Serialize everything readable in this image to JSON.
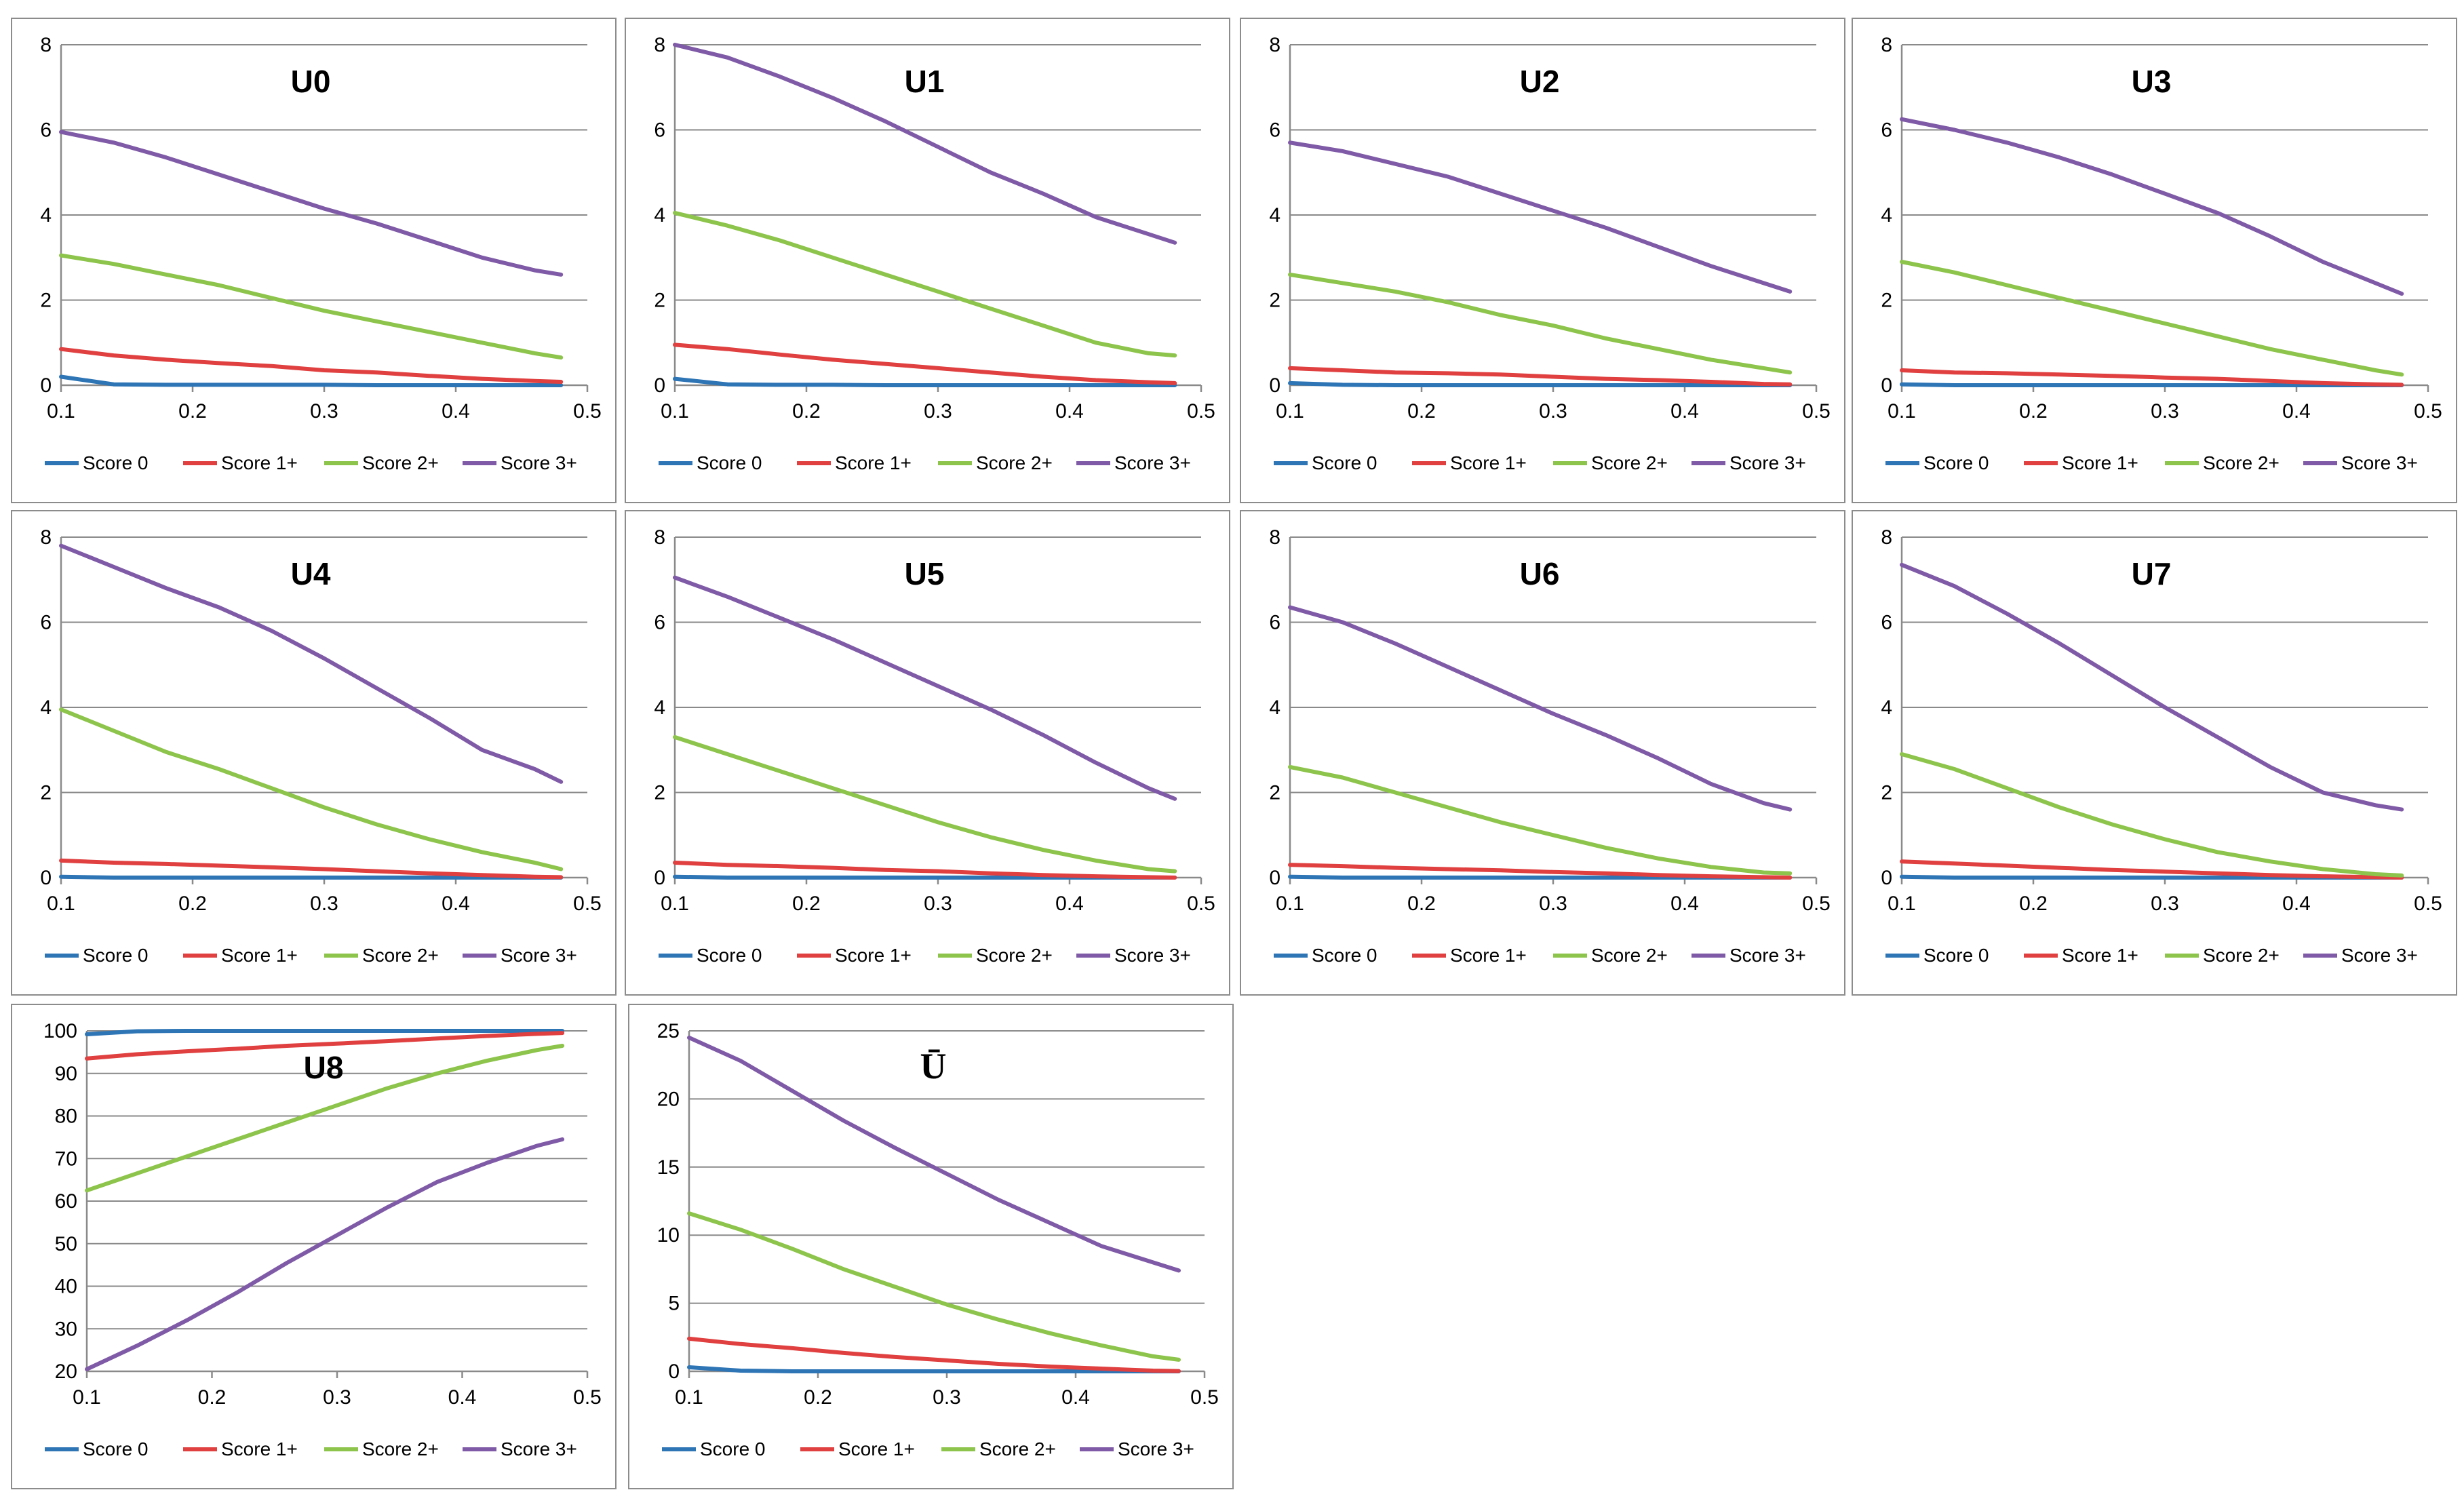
{
  "figure": {
    "legend": [
      "Score 0",
      "Score 1+",
      "Score 2+",
      "Score 3+"
    ],
    "colors": {
      "Score 0": "#2e75b6",
      "Score 1+": "#e04040",
      "Score 2+": "#8dc44b",
      "Score 3+": "#7f5aa6"
    },
    "xticks": [
      "0.1",
      "0.2",
      "0.3",
      "0.4",
      "0.5"
    ]
  },
  "chart_data": [
    {
      "type": "line",
      "title": "U0",
      "xlim": [
        0.1,
        0.5
      ],
      "ylim": [
        0,
        8
      ],
      "yticks": [
        "0",
        "2",
        "4",
        "6",
        "8"
      ],
      "x": [
        0.1,
        0.14,
        0.18,
        0.22,
        0.26,
        0.3,
        0.34,
        0.38,
        0.42,
        0.46,
        0.48
      ],
      "series": [
        {
          "name": "Score 0",
          "values": [
            0.2,
            0.02,
            0.01,
            0.01,
            0.01,
            0.01,
            0.0,
            0.0,
            0.0,
            0.0,
            0.0
          ]
        },
        {
          "name": "Score 1+",
          "values": [
            0.85,
            0.7,
            0.6,
            0.52,
            0.45,
            0.35,
            0.3,
            0.22,
            0.15,
            0.1,
            0.08
          ]
        },
        {
          "name": "Score 2+",
          "values": [
            3.05,
            2.85,
            2.6,
            2.35,
            2.05,
            1.75,
            1.5,
            1.25,
            1.0,
            0.75,
            0.65
          ]
        },
        {
          "name": "Score 3+",
          "values": [
            5.95,
            5.7,
            5.35,
            4.95,
            4.55,
            4.15,
            3.8,
            3.4,
            3.0,
            2.7,
            2.6
          ]
        }
      ]
    },
    {
      "type": "line",
      "title": "U1",
      "xlim": [
        0.1,
        0.5
      ],
      "ylim": [
        0,
        8
      ],
      "yticks": [
        "0",
        "2",
        "4",
        "6",
        "8"
      ],
      "x": [
        0.1,
        0.14,
        0.18,
        0.22,
        0.26,
        0.3,
        0.34,
        0.38,
        0.42,
        0.46,
        0.48
      ],
      "series": [
        {
          "name": "Score 0",
          "values": [
            0.15,
            0.02,
            0.01,
            0.01,
            0.0,
            0.0,
            0.0,
            0.0,
            0.0,
            0.0,
            0.0
          ]
        },
        {
          "name": "Score 1+",
          "values": [
            0.95,
            0.85,
            0.72,
            0.6,
            0.5,
            0.4,
            0.3,
            0.2,
            0.12,
            0.07,
            0.05
          ]
        },
        {
          "name": "Score 2+",
          "values": [
            4.05,
            3.75,
            3.4,
            3.0,
            2.6,
            2.2,
            1.8,
            1.4,
            1.0,
            0.75,
            0.7
          ]
        },
        {
          "name": "Score 3+",
          "values": [
            8.0,
            7.7,
            7.25,
            6.75,
            6.2,
            5.6,
            5.0,
            4.5,
            3.95,
            3.55,
            3.35
          ]
        }
      ]
    },
    {
      "type": "line",
      "title": "U2",
      "xlim": [
        0.1,
        0.5
      ],
      "ylim": [
        0,
        8
      ],
      "yticks": [
        "0",
        "2",
        "4",
        "6",
        "8"
      ],
      "x": [
        0.1,
        0.14,
        0.18,
        0.22,
        0.26,
        0.3,
        0.34,
        0.38,
        0.42,
        0.46,
        0.48
      ],
      "series": [
        {
          "name": "Score 0",
          "values": [
            0.05,
            0.01,
            0.0,
            0.0,
            0.0,
            0.0,
            0.0,
            0.0,
            0.0,
            0.0,
            0.0
          ]
        },
        {
          "name": "Score 1+",
          "values": [
            0.4,
            0.35,
            0.3,
            0.28,
            0.25,
            0.2,
            0.15,
            0.12,
            0.08,
            0.03,
            0.02
          ]
        },
        {
          "name": "Score 2+",
          "values": [
            2.6,
            2.4,
            2.2,
            1.95,
            1.65,
            1.4,
            1.1,
            0.85,
            0.6,
            0.4,
            0.3
          ]
        },
        {
          "name": "Score 3+",
          "values": [
            5.7,
            5.5,
            5.2,
            4.9,
            4.5,
            4.1,
            3.7,
            3.25,
            2.8,
            2.4,
            2.2
          ]
        }
      ]
    },
    {
      "type": "line",
      "title": "U3",
      "xlim": [
        0.1,
        0.5
      ],
      "ylim": [
        0,
        8
      ],
      "yticks": [
        "0",
        "2",
        "4",
        "6",
        "8"
      ],
      "x": [
        0.1,
        0.14,
        0.18,
        0.22,
        0.26,
        0.3,
        0.34,
        0.38,
        0.42,
        0.46,
        0.48
      ],
      "series": [
        {
          "name": "Score 0",
          "values": [
            0.02,
            0.0,
            0.0,
            0.0,
            0.0,
            0.0,
            0.0,
            0.0,
            0.0,
            0.0,
            0.0
          ]
        },
        {
          "name": "Score 1+",
          "values": [
            0.35,
            0.3,
            0.28,
            0.25,
            0.22,
            0.18,
            0.15,
            0.1,
            0.05,
            0.02,
            0.01
          ]
        },
        {
          "name": "Score 2+",
          "values": [
            2.9,
            2.65,
            2.35,
            2.05,
            1.75,
            1.45,
            1.15,
            0.85,
            0.6,
            0.35,
            0.25
          ]
        },
        {
          "name": "Score 3+",
          "values": [
            6.25,
            6.0,
            5.7,
            5.35,
            4.95,
            4.5,
            4.05,
            3.5,
            2.9,
            2.4,
            2.15
          ]
        }
      ]
    },
    {
      "type": "line",
      "title": "U4",
      "xlim": [
        0.1,
        0.5
      ],
      "ylim": [
        0,
        8
      ],
      "yticks": [
        "0",
        "2",
        "4",
        "6",
        "8"
      ],
      "x": [
        0.1,
        0.14,
        0.18,
        0.22,
        0.26,
        0.3,
        0.34,
        0.38,
        0.42,
        0.46,
        0.48
      ],
      "series": [
        {
          "name": "Score 0",
          "values": [
            0.02,
            0.0,
            0.0,
            0.0,
            0.0,
            0.0,
            0.0,
            0.0,
            0.0,
            0.0,
            0.0
          ]
        },
        {
          "name": "Score 1+",
          "values": [
            0.4,
            0.35,
            0.32,
            0.28,
            0.24,
            0.2,
            0.15,
            0.1,
            0.06,
            0.02,
            0.01
          ]
        },
        {
          "name": "Score 2+",
          "values": [
            3.95,
            3.45,
            2.95,
            2.55,
            2.1,
            1.65,
            1.25,
            0.9,
            0.6,
            0.35,
            0.2
          ]
        },
        {
          "name": "Score 3+",
          "values": [
            7.8,
            7.3,
            6.8,
            6.35,
            5.8,
            5.15,
            4.45,
            3.75,
            3.0,
            2.55,
            2.25
          ]
        }
      ]
    },
    {
      "type": "line",
      "title": "U5",
      "xlim": [
        0.1,
        0.5
      ],
      "ylim": [
        0,
        8
      ],
      "yticks": [
        "0",
        "2",
        "4",
        "6",
        "8"
      ],
      "x": [
        0.1,
        0.14,
        0.18,
        0.22,
        0.26,
        0.3,
        0.34,
        0.38,
        0.42,
        0.46,
        0.48
      ],
      "series": [
        {
          "name": "Score 0",
          "values": [
            0.02,
            0.0,
            0.0,
            0.0,
            0.0,
            0.0,
            0.0,
            0.0,
            0.0,
            0.0,
            0.0
          ]
        },
        {
          "name": "Score 1+",
          "values": [
            0.35,
            0.3,
            0.27,
            0.23,
            0.18,
            0.15,
            0.1,
            0.06,
            0.03,
            0.01,
            0.0
          ]
        },
        {
          "name": "Score 2+",
          "values": [
            3.3,
            2.9,
            2.5,
            2.1,
            1.7,
            1.3,
            0.95,
            0.65,
            0.4,
            0.2,
            0.15
          ]
        },
        {
          "name": "Score 3+",
          "values": [
            7.05,
            6.6,
            6.1,
            5.6,
            5.05,
            4.5,
            3.95,
            3.35,
            2.7,
            2.1,
            1.85
          ]
        }
      ]
    },
    {
      "type": "line",
      "title": "U6",
      "xlim": [
        0.1,
        0.5
      ],
      "ylim": [
        0,
        8
      ],
      "yticks": [
        "0",
        "2",
        "4",
        "6",
        "8"
      ],
      "x": [
        0.1,
        0.14,
        0.18,
        0.22,
        0.26,
        0.3,
        0.34,
        0.38,
        0.42,
        0.46,
        0.48
      ],
      "series": [
        {
          "name": "Score 0",
          "values": [
            0.02,
            0.0,
            0.0,
            0.0,
            0.0,
            0.0,
            0.0,
            0.0,
            0.0,
            0.0,
            0.0
          ]
        },
        {
          "name": "Score 1+",
          "values": [
            0.3,
            0.27,
            0.23,
            0.2,
            0.17,
            0.13,
            0.1,
            0.06,
            0.03,
            0.01,
            0.0
          ]
        },
        {
          "name": "Score 2+",
          "values": [
            2.6,
            2.35,
            2.0,
            1.65,
            1.3,
            1.0,
            0.7,
            0.45,
            0.25,
            0.12,
            0.1
          ]
        },
        {
          "name": "Score 3+",
          "values": [
            6.35,
            6.0,
            5.5,
            4.95,
            4.4,
            3.85,
            3.35,
            2.8,
            2.2,
            1.75,
            1.6
          ]
        }
      ]
    },
    {
      "type": "line",
      "title": "U7",
      "xlim": [
        0.1,
        0.5
      ],
      "ylim": [
        0,
        8
      ],
      "yticks": [
        "0",
        "2",
        "4",
        "6",
        "8"
      ],
      "x": [
        0.1,
        0.14,
        0.18,
        0.22,
        0.26,
        0.3,
        0.34,
        0.38,
        0.42,
        0.46,
        0.48
      ],
      "series": [
        {
          "name": "Score 0",
          "values": [
            0.02,
            0.0,
            0.0,
            0.0,
            0.0,
            0.0,
            0.0,
            0.0,
            0.0,
            0.0,
            0.0
          ]
        },
        {
          "name": "Score 1+",
          "values": [
            0.38,
            0.33,
            0.28,
            0.23,
            0.18,
            0.14,
            0.1,
            0.06,
            0.03,
            0.01,
            0.0
          ]
        },
        {
          "name": "Score 2+",
          "values": [
            2.9,
            2.55,
            2.1,
            1.65,
            1.25,
            0.9,
            0.6,
            0.38,
            0.2,
            0.08,
            0.05
          ]
        },
        {
          "name": "Score 3+",
          "values": [
            7.35,
            6.85,
            6.2,
            5.5,
            4.75,
            4.0,
            3.3,
            2.6,
            2.0,
            1.7,
            1.6
          ]
        }
      ]
    },
    {
      "type": "line",
      "title": "U8",
      "xlim": [
        0.1,
        0.5
      ],
      "ylim": [
        20,
        100
      ],
      "yticks": [
        "20",
        "30",
        "40",
        "50",
        "60",
        "70",
        "80",
        "90",
        "100"
      ],
      "x": [
        0.1,
        0.14,
        0.18,
        0.22,
        0.26,
        0.3,
        0.34,
        0.38,
        0.42,
        0.46,
        0.48
      ],
      "series": [
        {
          "name": "Score 0",
          "values": [
            99.2,
            99.9,
            100,
            100,
            100,
            100,
            100,
            100,
            100,
            100,
            100
          ]
        },
        {
          "name": "Score 1+",
          "values": [
            93.5,
            94.5,
            95.2,
            95.8,
            96.5,
            97.0,
            97.6,
            98.2,
            98.8,
            99.3,
            99.5
          ]
        },
        {
          "name": "Score 2+",
          "values": [
            62.5,
            66.5,
            70.5,
            74.5,
            78.5,
            82.5,
            86.5,
            90.0,
            93.0,
            95.5,
            96.5
          ]
        },
        {
          "name": "Score 3+",
          "values": [
            20.5,
            26.0,
            32.0,
            38.5,
            45.5,
            52.0,
            58.5,
            64.5,
            69.0,
            73.0,
            74.5
          ]
        }
      ]
    },
    {
      "type": "line",
      "title": "Ū",
      "xlim": [
        0.1,
        0.5
      ],
      "ylim": [
        0,
        25
      ],
      "yticks": [
        "0",
        "5",
        "10",
        "15",
        "20",
        "25"
      ],
      "x": [
        0.1,
        0.14,
        0.18,
        0.22,
        0.26,
        0.3,
        0.34,
        0.38,
        0.42,
        0.46,
        0.48
      ],
      "series": [
        {
          "name": "Score 0",
          "values": [
            0.3,
            0.05,
            0.0,
            0.0,
            0.0,
            0.0,
            0.0,
            0.0,
            0.0,
            0.0,
            0.0
          ]
        },
        {
          "name": "Score 1+",
          "values": [
            2.4,
            2.0,
            1.7,
            1.35,
            1.05,
            0.8,
            0.55,
            0.35,
            0.2,
            0.05,
            0.02
          ]
        },
        {
          "name": "Score 2+",
          "values": [
            11.6,
            10.4,
            9.0,
            7.5,
            6.2,
            4.9,
            3.8,
            2.8,
            1.9,
            1.1,
            0.85
          ]
        },
        {
          "name": "Score 3+",
          "values": [
            24.5,
            22.8,
            20.6,
            18.4,
            16.4,
            14.5,
            12.6,
            10.9,
            9.2,
            8.0,
            7.4
          ]
        }
      ]
    }
  ]
}
